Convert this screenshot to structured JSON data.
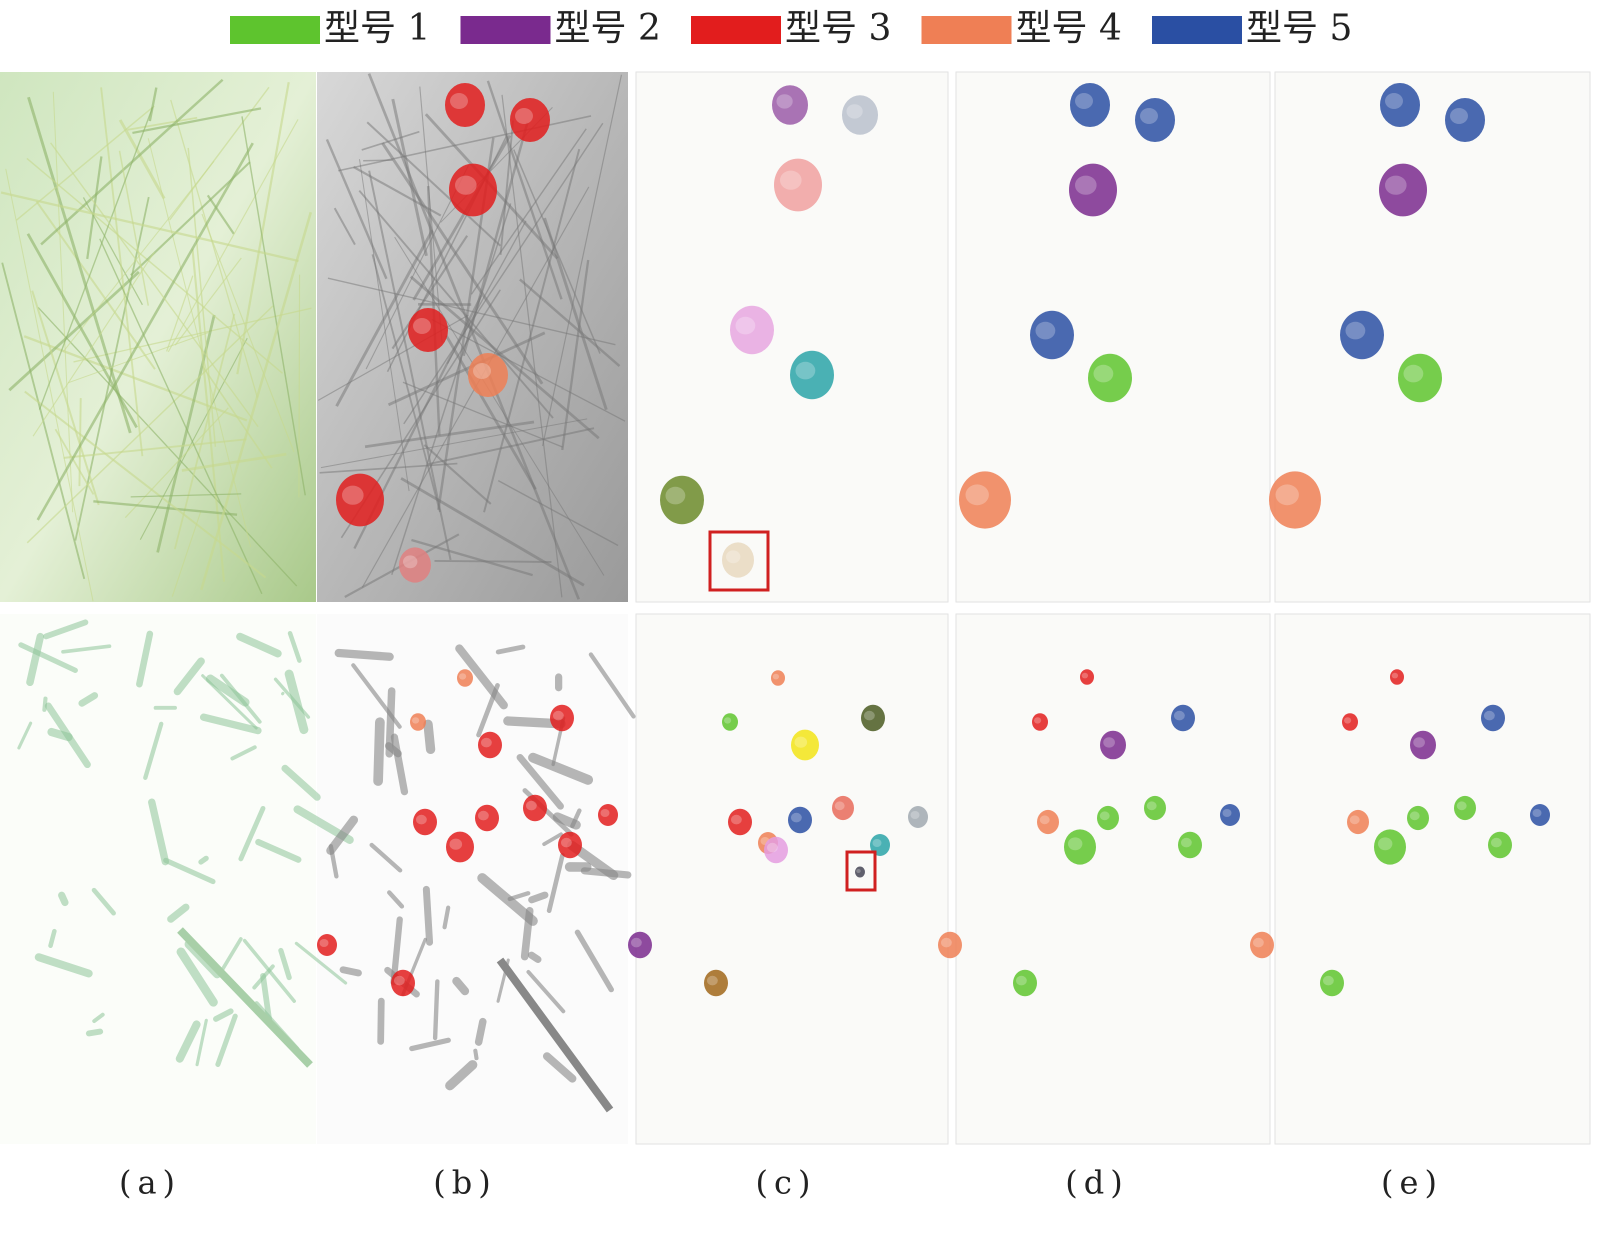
{
  "legend": [
    {
      "label": "型号 1",
      "color": "#5ec42e"
    },
    {
      "label": "型号 2",
      "color": "#7a2a8e"
    },
    {
      "label": "型号 3",
      "color": "#e21d1d"
    },
    {
      "label": "型号 4",
      "color": "#ef7f55"
    },
    {
      "label": "型号 5",
      "color": "#2a4fa3"
    }
  ],
  "captions": [
    "(a)",
    "(b)",
    "(c)",
    "(d)",
    "(e)"
  ]
}
